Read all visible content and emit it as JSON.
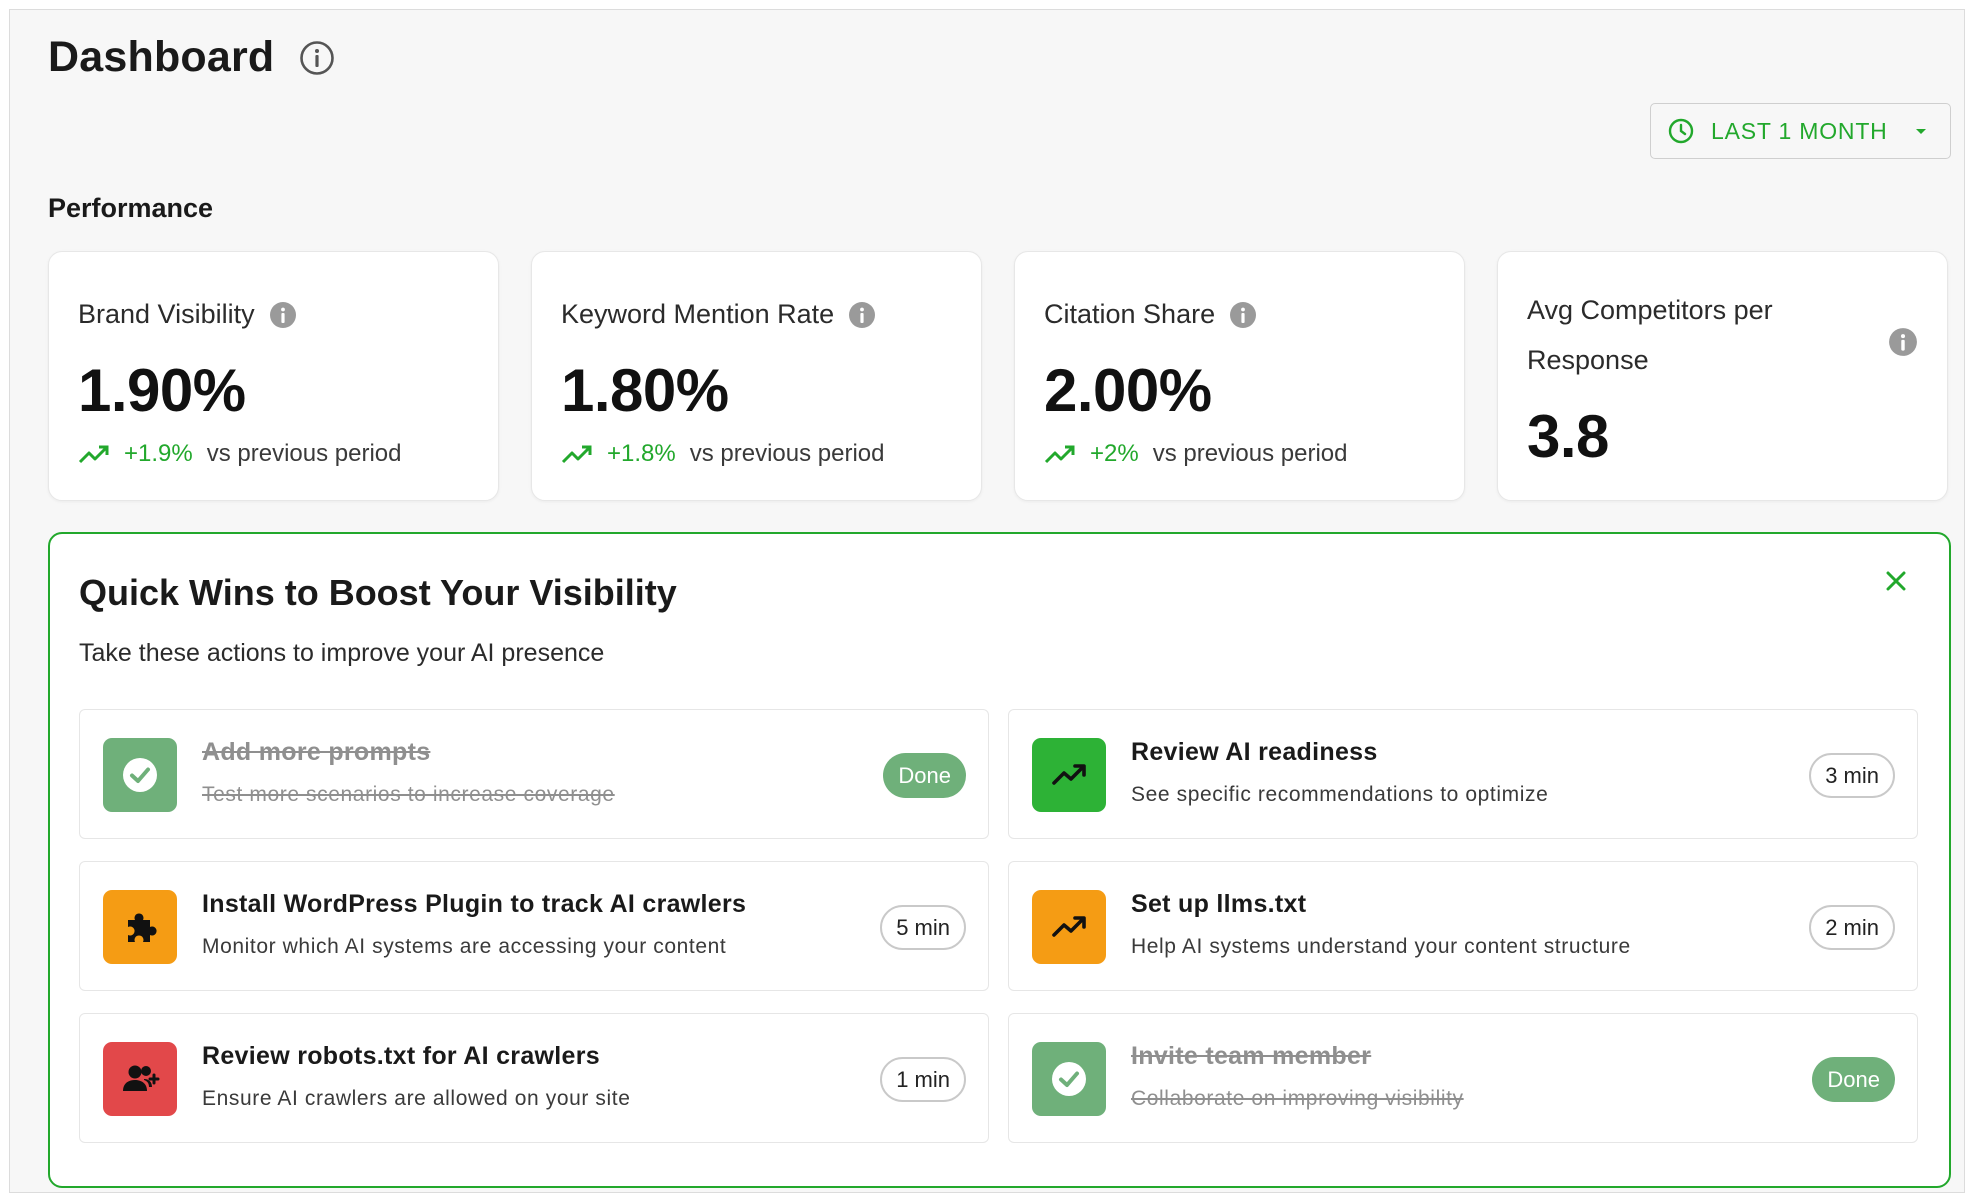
{
  "header": {
    "title": "Dashboard",
    "date_range": "LAST 1 MONTH"
  },
  "performance": {
    "title": "Performance",
    "cards": [
      {
        "label": "Brand Visibility",
        "value": "1.90%",
        "delta": "+1.9%",
        "comparison": "vs previous period"
      },
      {
        "label": "Keyword Mention Rate",
        "value": "1.80%",
        "delta": "+1.8%",
        "comparison": "vs previous period"
      },
      {
        "label": "Citation Share",
        "value": "2.00%",
        "delta": "+2%",
        "comparison": "vs previous period"
      },
      {
        "label": "Avg Competitors per Response",
        "value": "3.8"
      }
    ]
  },
  "quick_wins": {
    "title": "Quick Wins to Boost Your Visibility",
    "subtitle": "Take these actions to improve your AI presence",
    "tasks": [
      {
        "title": "Add more prompts",
        "description": "Test more scenarios to increase coverage",
        "badge": "Done",
        "status": "done",
        "icon": "check-icon"
      },
      {
        "title": "Review AI readiness",
        "description": "See specific recommendations to optimize",
        "badge": "3 min",
        "status": "todo",
        "icon": "trending-up-icon"
      },
      {
        "title": "Install WordPress Plugin to track AI crawlers",
        "description": "Monitor which AI systems are accessing your content",
        "badge": "5 min",
        "status": "todo",
        "icon": "puzzle-icon"
      },
      {
        "title": "Set up llms.txt",
        "description": "Help AI systems understand your content structure",
        "badge": "2 min",
        "status": "todo",
        "icon": "trending-up-icon"
      },
      {
        "title": "Review robots.txt for AI crawlers",
        "description": "Ensure AI crawlers are allowed on your site",
        "badge": "1 min",
        "status": "todo",
        "icon": "add-user-icon"
      },
      {
        "title": "Invite team member",
        "description": "Collaborate on improving visibility",
        "badge": "Done",
        "status": "done",
        "icon": "check-icon"
      }
    ]
  },
  "colors": {
    "accent_green": "#22a82c",
    "done_green": "#6fb07a",
    "orange": "#f59c14",
    "red": "#e2484a"
  }
}
